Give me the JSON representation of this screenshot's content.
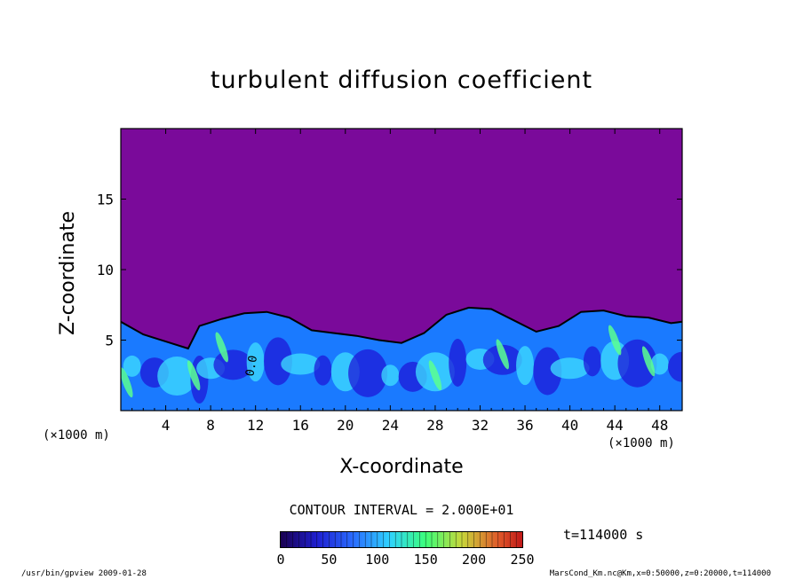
{
  "chart_data": {
    "type": "heatmap",
    "title": "turbulent diffusion coefficient",
    "xlabel": "X-coordinate",
    "ylabel": "Z-coordinate",
    "x_unit": "(×1000 m)",
    "z_unit": "(×1000 m)",
    "xlim": [
      0,
      50
    ],
    "ylim": [
      0,
      20
    ],
    "x_ticks": [
      4,
      8,
      12,
      16,
      20,
      24,
      28,
      32,
      36,
      40,
      44,
      48
    ],
    "y_ticks": [
      5,
      10,
      15
    ],
    "contour_interval": "CONTOUR INTERVAL = 2.000E+01",
    "contour_label": "0.0",
    "colorbar": {
      "ticks": [
        0,
        50,
        100,
        150,
        200,
        250
      ],
      "range": [
        0,
        250
      ]
    },
    "boundary_layer_top": [
      [
        0,
        6.3
      ],
      [
        2,
        5.4
      ],
      [
        4,
        4.9
      ],
      [
        6,
        4.4
      ],
      [
        7,
        6.0
      ],
      [
        9,
        6.5
      ],
      [
        11,
        6.9
      ],
      [
        13,
        7.0
      ],
      [
        15,
        6.6
      ],
      [
        17,
        5.7
      ],
      [
        19,
        5.5
      ],
      [
        21,
        5.3
      ],
      [
        23,
        5.0
      ],
      [
        25,
        4.8
      ],
      [
        27,
        5.5
      ],
      [
        29,
        6.8
      ],
      [
        31,
        7.3
      ],
      [
        33,
        7.2
      ],
      [
        35,
        6.4
      ],
      [
        37,
        5.6
      ],
      [
        39,
        6.0
      ],
      [
        41,
        7.0
      ],
      [
        43,
        7.1
      ],
      [
        45,
        6.7
      ],
      [
        47,
        6.6
      ],
      [
        49,
        6.2
      ],
      [
        50,
        6.3
      ]
    ],
    "time": "t=114000 s"
  },
  "footer": {
    "left": "/usr/bin/gpview  2009-01-28",
    "right": "MarsCond_Km.nc@Km,x=0:50000,z=0:20000,t=114000"
  },
  "colors": {
    "background_field": "#7a0a9a",
    "low": "#1e18d8",
    "mid": "#1a7aff",
    "high": "#3fe0ff",
    "peak": "#5bff90"
  }
}
